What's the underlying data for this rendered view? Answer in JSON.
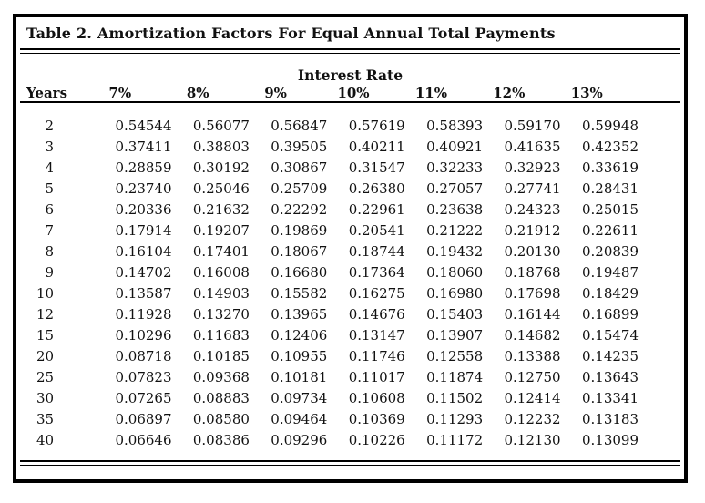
{
  "title": "Table 2. Amortization Factors For Equal Annual Total Payments",
  "table": {
    "group_header": "Interest Rate",
    "columns": [
      "Years",
      "7%",
      "8%",
      "9%",
      "10%",
      "11%",
      "12%",
      "13%"
    ],
    "rows": [
      [
        "2",
        "0.54544",
        "0.56077",
        "0.56847",
        "0.57619",
        "0.58393",
        "0.59170",
        "0.59948"
      ],
      [
        "3",
        "0.37411",
        "0.38803",
        "0.39505",
        "0.40211",
        "0.40921",
        "0.41635",
        "0.42352"
      ],
      [
        "4",
        "0.28859",
        "0.30192",
        "0.30867",
        "0.31547",
        "0.32233",
        "0.32923",
        "0.33619"
      ],
      [
        "5",
        "0.23740",
        "0.25046",
        "0.25709",
        "0.26380",
        "0.27057",
        "0.27741",
        "0.28431"
      ],
      [
        "6",
        "0.20336",
        "0.21632",
        "0.22292",
        "0.22961",
        "0.23638",
        "0.24323",
        "0.25015"
      ],
      [
        "7",
        "0.17914",
        "0.19207",
        "0.19869",
        "0.20541",
        "0.21222",
        "0.21912",
        "0.22611"
      ],
      [
        "8",
        "0.16104",
        "0.17401",
        "0.18067",
        "0.18744",
        "0.19432",
        "0.20130",
        "0.20839"
      ],
      [
        "9",
        "0.14702",
        "0.16008",
        "0.16680",
        "0.17364",
        "0.18060",
        "0.18768",
        "0.19487"
      ],
      [
        "10",
        "0.13587",
        "0.14903",
        "0.15582",
        "0.16275",
        "0.16980",
        "0.17698",
        "0.18429"
      ],
      [
        "12",
        "0.11928",
        "0.13270",
        "0.13965",
        "0.14676",
        "0.15403",
        "0.16144",
        "0.16899"
      ],
      [
        "15",
        "0.10296",
        "0.11683",
        "0.12406",
        "0.13147",
        "0.13907",
        "0.14682",
        "0.15474"
      ],
      [
        "20",
        "0.08718",
        "0.10185",
        "0.10955",
        "0.11746",
        "0.12558",
        "0.13388",
        "0.14235"
      ],
      [
        "25",
        "0.07823",
        "0.09368",
        "0.10181",
        "0.11017",
        "0.11874",
        "0.12750",
        "0.13643"
      ],
      [
        "30",
        "0.07265",
        "0.08883",
        "0.09734",
        "0.10608",
        "0.11502",
        "0.12414",
        "0.13341"
      ],
      [
        "35",
        "0.06897",
        "0.08580",
        "0.09464",
        "0.10369",
        "0.11293",
        "0.12232",
        "0.13183"
      ],
      [
        "40",
        "0.06646",
        "0.08386",
        "0.09296",
        "0.10226",
        "0.11172",
        "0.12130",
        "0.13099"
      ]
    ]
  },
  "colors": {
    "text": "#111111",
    "border": "#000000",
    "background": "#ffffff"
  }
}
